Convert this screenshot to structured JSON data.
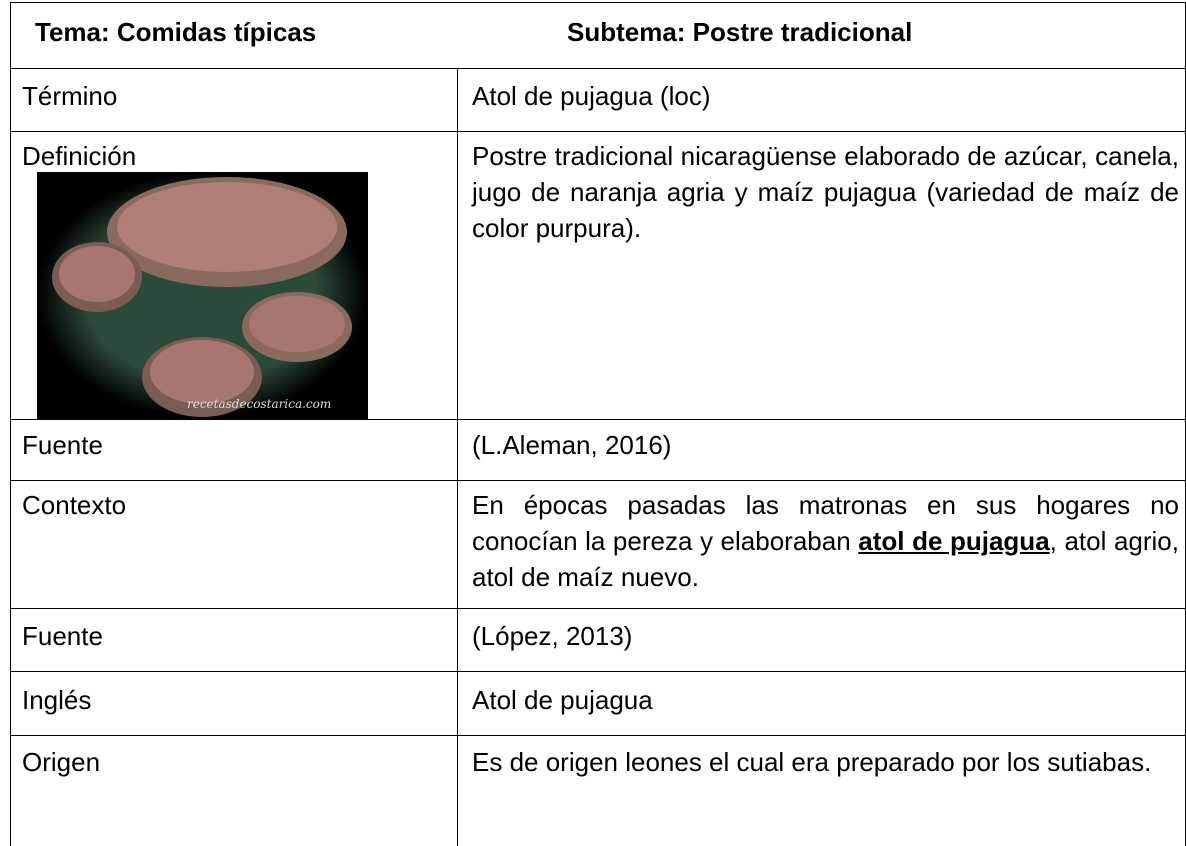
{
  "table": {
    "header": [
      "Tema: Comidas típicas",
      "Subtema: Postre tradicional"
    ],
    "rows": [
      {
        "label": "Término",
        "content": "Atol de pujagua (loc)"
      },
      {
        "label": "Definición",
        "content": "Postre tradicional nicaragüense elaborado de azúcar, canela, jugo de naranja agria y maíz pujagua (variedad de maíz de color purpura).",
        "image_watermark": "recetasdecostarica.com"
      },
      {
        "label": "Fuente",
        "content": "(L.Aleman, 2016)"
      },
      {
        "label": "Contexto",
        "content": [
          "En épocas pasadas las matronas en sus hogares no conocían la pereza y elaboraban ",
          "atol de pujagua",
          ", atol agrio, atol de maíz nuevo."
        ]
      },
      {
        "label": "Fuente",
        "content": "(López, 2013)"
      },
      {
        "label": "Inglés",
        "content": "Atol de pujagua"
      },
      {
        "label": "Origen",
        "content": "Es de origen leones el cual era preparado por los sutiabas."
      }
    ]
  }
}
